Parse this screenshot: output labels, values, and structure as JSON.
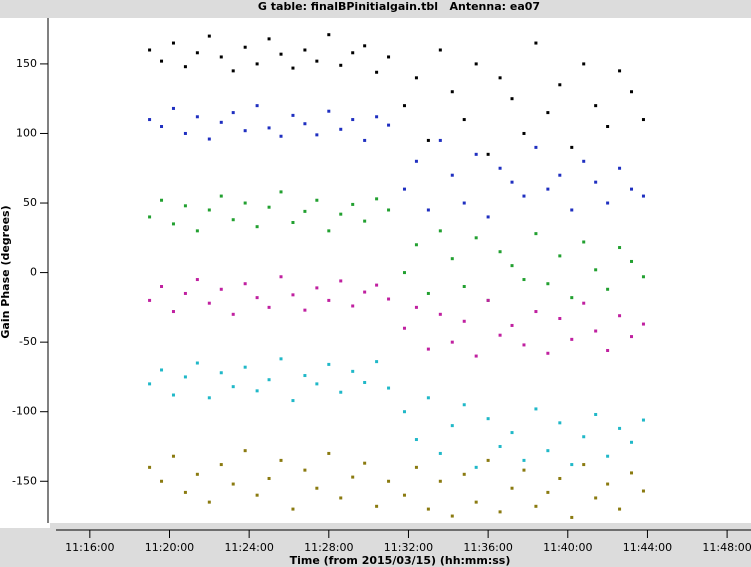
{
  "chart_data": {
    "type": "scatter",
    "title": "G table: finalBPinitialgain.tbl   Antenna: ea07",
    "x_label": "Time (from 2015/03/15) (hh:mm:ss)",
    "y_label": "Gain Phase (degrees)",
    "xlim": [
      14,
      49.2
    ],
    "ylim": [
      -180,
      183
    ],
    "xticks": [
      {
        "value": 16,
        "label": "11:16:00"
      },
      {
        "value": 20,
        "label": "11:20:00"
      },
      {
        "value": 24,
        "label": "11:24:00"
      },
      {
        "value": 28,
        "label": "11:28:00"
      },
      {
        "value": 32,
        "label": "11:32:00"
      },
      {
        "value": 36,
        "label": "11:36:00"
      },
      {
        "value": 40,
        "label": "11:40:00"
      },
      {
        "value": 44,
        "label": "11:44:00"
      },
      {
        "value": 48,
        "label": "11:48:00"
      }
    ],
    "yticks": [
      -150,
      -100,
      -50,
      0,
      50,
      100,
      150
    ],
    "x": [
      19,
      19.6,
      20.2,
      20.8,
      21.4,
      22,
      22.6,
      23.2,
      23.8,
      24.4,
      25,
      25.6,
      26.2,
      26.8,
      27.4,
      28,
      28.6,
      29.2,
      29.8,
      30.4,
      31,
      31.8,
      32.4,
      33,
      33.6,
      34.2,
      34.8,
      35.4,
      36,
      36.6,
      37.2,
      37.8,
      38.4,
      39,
      39.6,
      40.2,
      40.8,
      41.4,
      42,
      42.6,
      43.2,
      43.8
    ],
    "series": [
      {
        "color": "#000000",
        "values": [
          160,
          152,
          165,
          148,
          158,
          170,
          155,
          145,
          162,
          150,
          168,
          157,
          147,
          160,
          152,
          171,
          149,
          158,
          163,
          144,
          155,
          120,
          140,
          95,
          160,
          130,
          110,
          150,
          85,
          140,
          125,
          100,
          165,
          115,
          135,
          90,
          150,
          120,
          105,
          145,
          130,
          110
        ]
      },
      {
        "color": "#1f2fc0",
        "values": [
          110,
          105,
          118,
          100,
          112,
          96,
          108,
          115,
          102,
          120,
          104,
          98,
          113,
          107,
          99,
          116,
          103,
          110,
          95,
          112,
          106,
          60,
          80,
          45,
          95,
          70,
          50,
          85,
          40,
          75,
          65,
          55,
          90,
          60,
          70,
          45,
          80,
          65,
          50,
          75,
          60,
          55
        ]
      },
      {
        "color": "#22a030",
        "values": [
          40,
          52,
          35,
          48,
          30,
          45,
          55,
          38,
          50,
          33,
          47,
          58,
          36,
          44,
          52,
          30,
          42,
          49,
          37,
          53,
          45,
          0,
          20,
          -15,
          30,
          10,
          -10,
          25,
          -20,
          15,
          5,
          -5,
          28,
          -8,
          12,
          -18,
          22,
          2,
          -12,
          18,
          8,
          -3
        ]
      },
      {
        "color": "#c020a0",
        "values": [
          -20,
          -10,
          -28,
          -15,
          -5,
          -22,
          -12,
          -30,
          -8,
          -18,
          -25,
          -3,
          -16,
          -27,
          -11,
          -20,
          -6,
          -24,
          -14,
          -9,
          -19,
          -40,
          -25,
          -55,
          -30,
          -50,
          -35,
          -60,
          -20,
          -45,
          -38,
          -52,
          -28,
          -58,
          -33,
          -48,
          -22,
          -42,
          -56,
          -31,
          -46,
          -37
        ]
      },
      {
        "color": "#20b8c8",
        "values": [
          -80,
          -70,
          -88,
          -75,
          -65,
          -90,
          -72,
          -82,
          -68,
          -85,
          -77,
          -62,
          -92,
          -74,
          -80,
          -66,
          -86,
          -71,
          -79,
          -64,
          -83,
          -100,
          -120,
          -90,
          -130,
          -110,
          -95,
          -140,
          -105,
          -125,
          -115,
          -135,
          -98,
          -128,
          -108,
          -138,
          -118,
          -102,
          -132,
          -112,
          -122,
          -106
        ]
      },
      {
        "color": "#8a7a10",
        "values": [
          -140,
          -150,
          -132,
          -158,
          -145,
          -165,
          -138,
          -152,
          -128,
          -160,
          -148,
          -135,
          -170,
          -142,
          -155,
          -130,
          -162,
          -147,
          -137,
          -168,
          -150,
          -160,
          -140,
          -170,
          -150,
          -175,
          -145,
          -165,
          -135,
          -172,
          -155,
          -142,
          -168,
          -158,
          -148,
          -176,
          -138,
          -162,
          -152,
          -170,
          -144,
          -157
        ]
      }
    ]
  }
}
